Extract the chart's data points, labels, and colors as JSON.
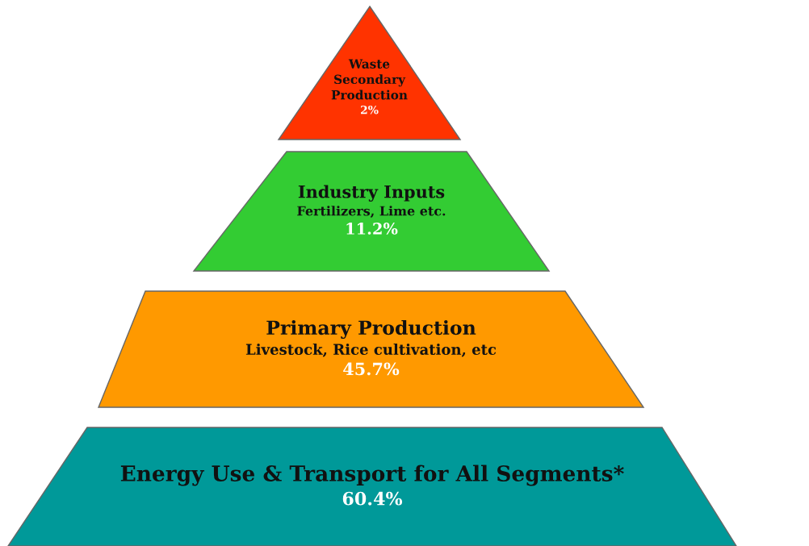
{
  "chart_data": {
    "type": "other",
    "categories": [
      "Waste\nSecondary\nProduction",
      "Industry Inputs\nFertilizers, Lime etc.",
      "Primary Production\nLivestock, Rice cultivation, etc",
      "Energy Use & Transport for All Segments*"
    ],
    "values": [
      2,
      11.2,
      45.7,
      60.4
    ],
    "value_labels": [
      "2%",
      "11.2%",
      "45.7%",
      "60.4%"
    ],
    "colors": [
      "#ff3300",
      "#33cc33",
      "#ff9900",
      "#009999"
    ]
  }
}
